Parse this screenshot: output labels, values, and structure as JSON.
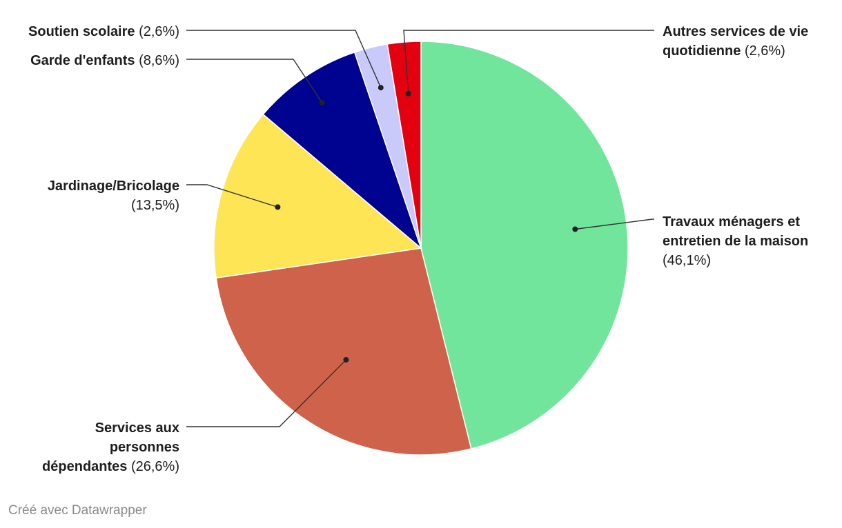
{
  "chart_data": {
    "type": "pie",
    "start_angle_deg": 0,
    "direction": "clockwise",
    "slices": [
      {
        "name": "Travaux ménagers et entretien de la maison",
        "label_lines": [
          "Travaux ménagers et",
          "entretien de la maison"
        ],
        "value": 46.1,
        "value_label": "(46,1%)",
        "color": "#72e59c"
      },
      {
        "name": "Services aux personnes dépendantes",
        "label_lines": [
          "Services aux",
          "personnes",
          "dépendantes"
        ],
        "value": 26.6,
        "value_label": "(26,6%)",
        "color": "#cf624a"
      },
      {
        "name": "Jardinage/Bricolage",
        "label_lines": [
          "Jardinage/Bricolage"
        ],
        "value": 13.5,
        "value_label": "(13,5%)",
        "color": "#fee556"
      },
      {
        "name": "Garde d'enfants",
        "label_lines": [
          "Garde d'enfants"
        ],
        "value": 8.6,
        "value_label": "(8,6%)",
        "color": "#000290"
      },
      {
        "name": "Soutien scolaire",
        "label_lines": [
          "Soutien scolaire"
        ],
        "value": 2.6,
        "value_label": "(2,6%)",
        "color": "#cacafa"
      },
      {
        "name": "Autres services de vie quotidienne",
        "label_lines": [
          "Autres services de vie",
          "quotidienne"
        ],
        "value": 2.6,
        "value_label": "(2,6%)",
        "color": "#e3000f"
      }
    ]
  },
  "footer": {
    "credit": "Créé avec Datawrapper"
  }
}
